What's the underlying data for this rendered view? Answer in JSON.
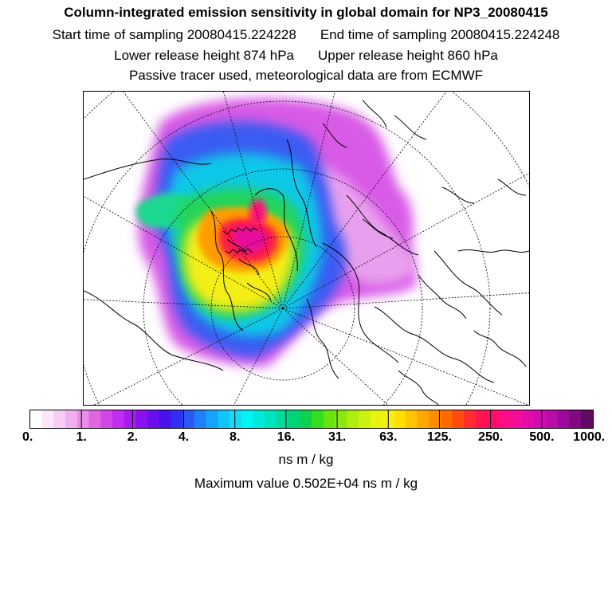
{
  "header": {
    "title": "Column-integrated emission sensitivity in global domain for NP3_20080415",
    "start_label": "Start time of sampling 20080415.224228",
    "end_label": "End time of sampling 20080415.224248",
    "lower_release": "Lower release height  874 hPa",
    "upper_release": "Upper release height  860 hPa",
    "tracer_note": "Passive tracer used, meteorological data are from ECMWF"
  },
  "colorbar": {
    "labels": [
      "0.",
      "1.",
      "2.",
      "4.",
      "8.",
      "16.",
      "31.",
      "63.",
      "125.",
      "250.",
      "500.",
      "1000."
    ],
    "colors": [
      "#ffffff",
      "#fbe6fb",
      "#f6ccf6",
      "#f0b0f0",
      "#e88ce8",
      "#de66de",
      "#d246e8",
      "#c22cf0",
      "#a81cf0",
      "#8a12f0",
      "#6a10f0",
      "#4a10ee",
      "#3030f0",
      "#2c58f4",
      "#2080f8",
      "#16a4fa",
      "#10c4fc",
      "#18daf8",
      "#00f4f4",
      "#00eadc",
      "#00e2bc",
      "#00da9a",
      "#00d478",
      "#10d050",
      "#34dc22",
      "#66e410",
      "#8ce810",
      "#b0ec10",
      "#ccf010",
      "#e6f410",
      "#f6f010",
      "#ffe000",
      "#ffc400",
      "#ffa800",
      "#ff8c00",
      "#ff6a00",
      "#ff4a10",
      "#ff2c30",
      "#ff1450",
      "#ff0c6c",
      "#ff0c88",
      "#f40c9a",
      "#e40ca8",
      "#d00cb0",
      "#b80ca8",
      "#9c0a9c",
      "#800a80",
      "#600a60"
    ],
    "units": "ns m / kg"
  },
  "footer": {
    "max_value": "Maximum value  0.502E+04 ns m / kg"
  }
}
